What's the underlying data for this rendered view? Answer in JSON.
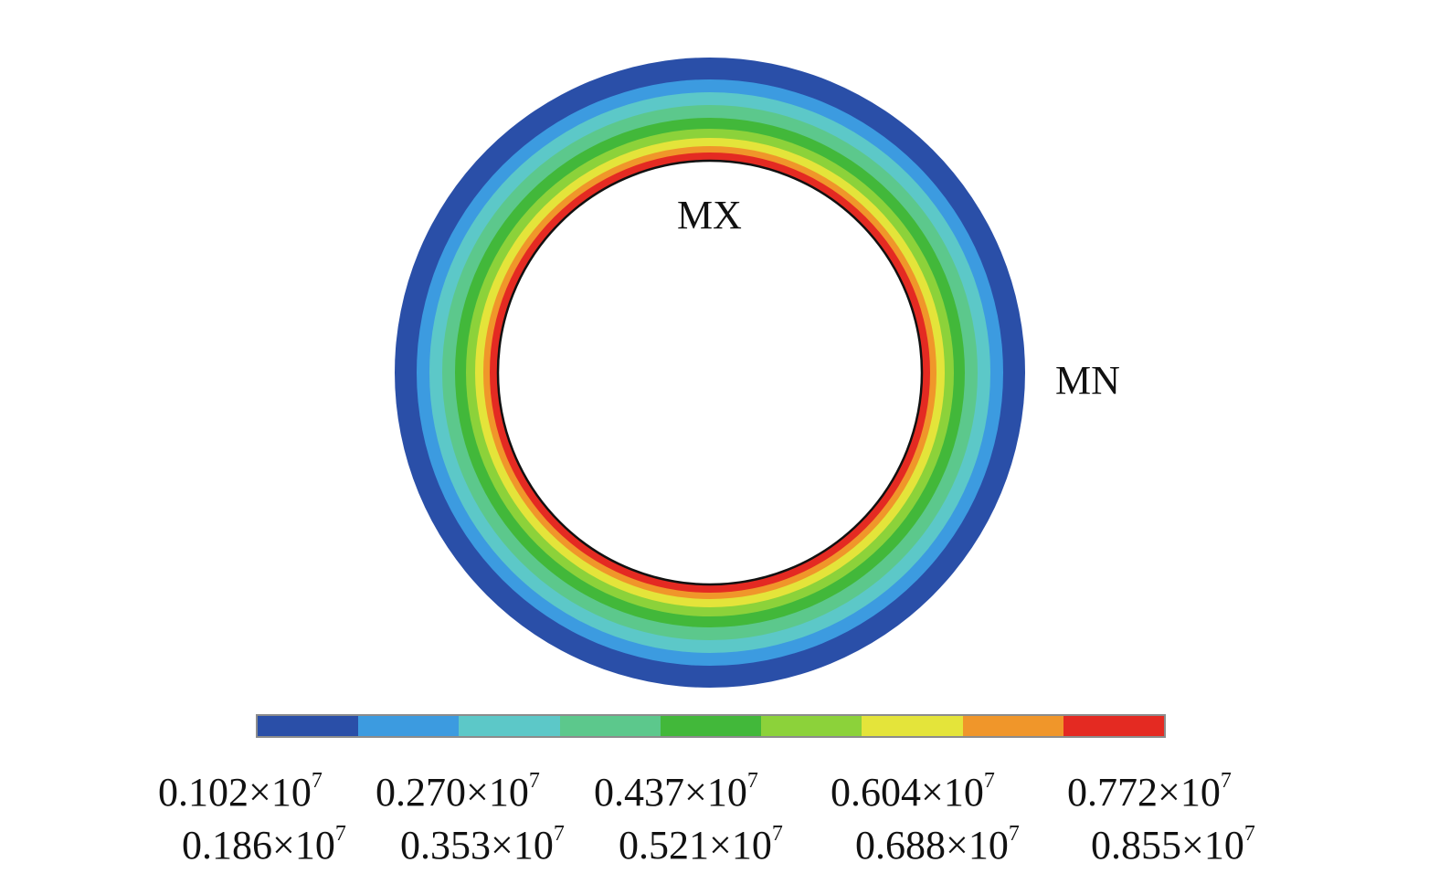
{
  "markers": {
    "max_label": "MX",
    "min_label": "MN"
  },
  "legend": {
    "colors": [
      "#2a4fa8",
      "#3c9be0",
      "#5cc8c8",
      "#5cc88c",
      "#42b83a",
      "#8cd23a",
      "#e4e43a",
      "#f0962a",
      "#e42a22"
    ],
    "ticks_top": [
      {
        "mantissa": "0.102",
        "times": "×10",
        "exp": "7"
      },
      {
        "mantissa": "0.270",
        "times": "×10",
        "exp": "7"
      },
      {
        "mantissa": "0.437",
        "times": "×10",
        "exp": "7"
      },
      {
        "mantissa": "0.604",
        "times": "×10",
        "exp": "7"
      },
      {
        "mantissa": "0.772",
        "times": "×10",
        "exp": "7"
      }
    ],
    "ticks_bottom": [
      {
        "mantissa": "0.186",
        "times": "×10",
        "exp": "7"
      },
      {
        "mantissa": "0.353",
        "times": "×10",
        "exp": "7"
      },
      {
        "mantissa": "0.521",
        "times": "×10",
        "exp": "7"
      },
      {
        "mantissa": "0.688",
        "times": "×10",
        "exp": "7"
      },
      {
        "mantissa": "0.855",
        "times": "×10",
        "exp": "7"
      }
    ]
  }
}
